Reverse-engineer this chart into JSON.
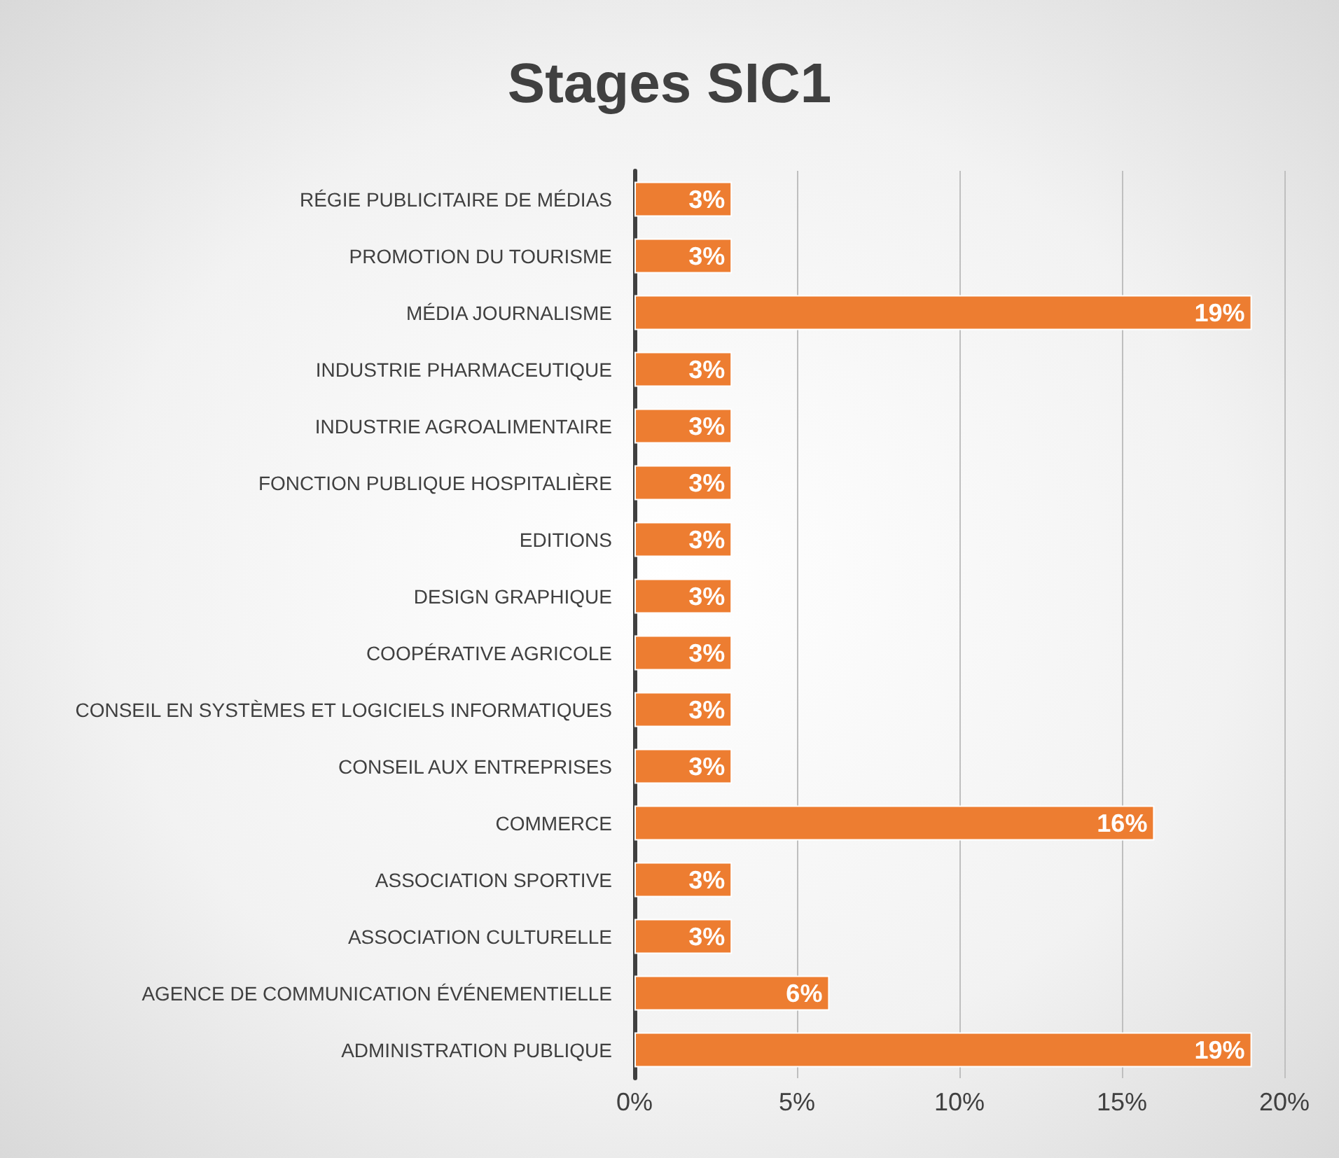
{
  "chart_data": {
    "type": "bar",
    "orientation": "horizontal",
    "title": "Stages SIC1",
    "categories": [
      "RÉGIE PUBLICITAIRE DE MÉDIAS",
      "PROMOTION DU TOURISME",
      "MÉDIA JOURNALISME",
      "INDUSTRIE PHARMACEUTIQUE",
      "INDUSTRIE AGROALIMENTAIRE",
      "FONCTION PUBLIQUE HOSPITALIÈRE",
      "EDITIONS",
      "DESIGN GRAPHIQUE",
      "COOPÉRATIVE AGRICOLE",
      "CONSEIL EN SYSTÈMES ET LOGICIELS INFORMATIQUES",
      "CONSEIL AUX ENTREPRISES",
      "COMMERCE",
      "ASSOCIATION SPORTIVE",
      "ASSOCIATION CULTURELLE",
      "AGENCE DE COMMUNICATION ÉVÉNEMENTIELLE",
      "ADMINISTRATION PUBLIQUE"
    ],
    "values": [
      3,
      3,
      19,
      3,
      3,
      3,
      3,
      3,
      3,
      3,
      3,
      16,
      3,
      3,
      6,
      19
    ],
    "value_labels": [
      "3%",
      "3%",
      "19%",
      "3%",
      "3%",
      "3%",
      "3%",
      "3%",
      "3%",
      "3%",
      "3%",
      "16%",
      "3%",
      "3%",
      "6%",
      "19%"
    ],
    "color": "#ed7d31",
    "xlim": [
      0,
      20
    ],
    "xticks": [
      {
        "value": 0,
        "label": "0%"
      },
      {
        "value": 5,
        "label": "5%"
      },
      {
        "value": 10,
        "label": "10%"
      },
      {
        "value": 15,
        "label": "15%"
      },
      {
        "value": 20,
        "label": "20%"
      }
    ],
    "grid": "x"
  }
}
